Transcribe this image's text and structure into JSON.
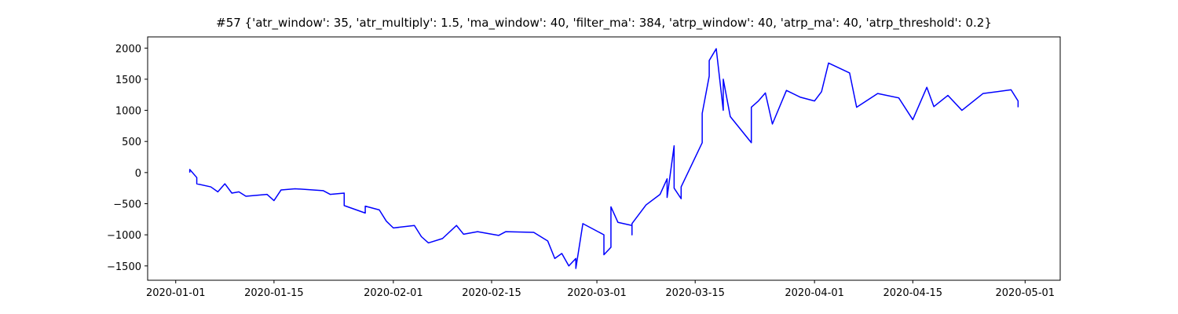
{
  "chart_data": {
    "type": "line",
    "title": "#57 {'atr_window': 35, 'atr_multiply': 1.5, 'ma_window': 40, 'filter_ma': 384, 'atrp_window': 40, 'atrp_ma': 40, 'atrp_threshold': 0.2}",
    "color": "#0000ff",
    "x": [
      "2020-01-03",
      "2020-01-03",
      "2020-01-04",
      "2020-01-04",
      "2020-01-06",
      "2020-01-07",
      "2020-01-08",
      "2020-01-09",
      "2020-01-10",
      "2020-01-11",
      "2020-01-14",
      "2020-01-15",
      "2020-01-16",
      "2020-01-18",
      "2020-01-22",
      "2020-01-23",
      "2020-01-25",
      "2020-01-25",
      "2020-01-28",
      "2020-01-28",
      "2020-01-30",
      "2020-01-31",
      "2020-02-01",
      "2020-02-04",
      "2020-02-05",
      "2020-02-06",
      "2020-02-08",
      "2020-02-10",
      "2020-02-11",
      "2020-02-13",
      "2020-02-16",
      "2020-02-17",
      "2020-02-21",
      "2020-02-23",
      "2020-02-24",
      "2020-02-25",
      "2020-02-26",
      "2020-02-27",
      "2020-02-27",
      "2020-02-28",
      "2020-03-02",
      "2020-03-02",
      "2020-03-03",
      "2020-03-03",
      "2020-03-04",
      "2020-03-06",
      "2020-03-06",
      "2020-03-06",
      "2020-03-08",
      "2020-03-10",
      "2020-03-11",
      "2020-03-11",
      "2020-03-12",
      "2020-03-12",
      "2020-03-13",
      "2020-03-13",
      "2020-03-16",
      "2020-03-16",
      "2020-03-17",
      "2020-03-17",
      "2020-03-18",
      "2020-03-19",
      "2020-03-19",
      "2020-03-20",
      "2020-03-23",
      "2020-03-23",
      "2020-03-24",
      "2020-03-25",
      "2020-03-26",
      "2020-03-28",
      "2020-03-30",
      "2020-04-01",
      "2020-04-02",
      "2020-04-03",
      "2020-04-06",
      "2020-04-07",
      "2020-04-10",
      "2020-04-13",
      "2020-04-15",
      "2020-04-17",
      "2020-04-18",
      "2020-04-20",
      "2020-04-22",
      "2020-04-25",
      "2020-04-29",
      "2020-04-30",
      "2020-04-30"
    ],
    "values": [
      0,
      50,
      -80,
      -180,
      -230,
      -310,
      -180,
      -330,
      -310,
      -380,
      -350,
      -450,
      -280,
      -260,
      -290,
      -350,
      -330,
      -530,
      -650,
      -540,
      -600,
      -780,
      -890,
      -850,
      -1030,
      -1130,
      -1060,
      -850,
      -990,
      -950,
      -1010,
      -950,
      -960,
      -1100,
      -1380,
      -1300,
      -1500,
      -1380,
      -1540,
      -820,
      -1000,
      -1320,
      -1200,
      -550,
      -800,
      -850,
      -1000,
      -820,
      -520,
      -350,
      -100,
      -400,
      430,
      -250,
      -420,
      -230,
      480,
      950,
      1550,
      1800,
      1990,
      1000,
      1500,
      900,
      480,
      1050,
      1150,
      1280,
      780,
      1320,
      1210,
      1150,
      1300,
      1760,
      1600,
      1050,
      1270,
      1200,
      850,
      1370,
      1060,
      1240,
      1000,
      1270,
      1330,
      1150,
      1050
    ],
    "xlim": [
      "2019-12-28",
      "2020-05-06"
    ],
    "xticks": [
      "2020-01-01",
      "2020-01-15",
      "2020-02-01",
      "2020-02-15",
      "2020-03-01",
      "2020-03-15",
      "2020-04-01",
      "2020-04-15",
      "2020-05-01"
    ],
    "ylim": [
      -1730,
      2180
    ],
    "yticks": [
      {
        "value": -1500,
        "label": "−1500"
      },
      {
        "value": -1000,
        "label": "−1000"
      },
      {
        "value": -500,
        "label": "−500"
      },
      0,
      500,
      1000,
      1500,
      2000
    ]
  }
}
